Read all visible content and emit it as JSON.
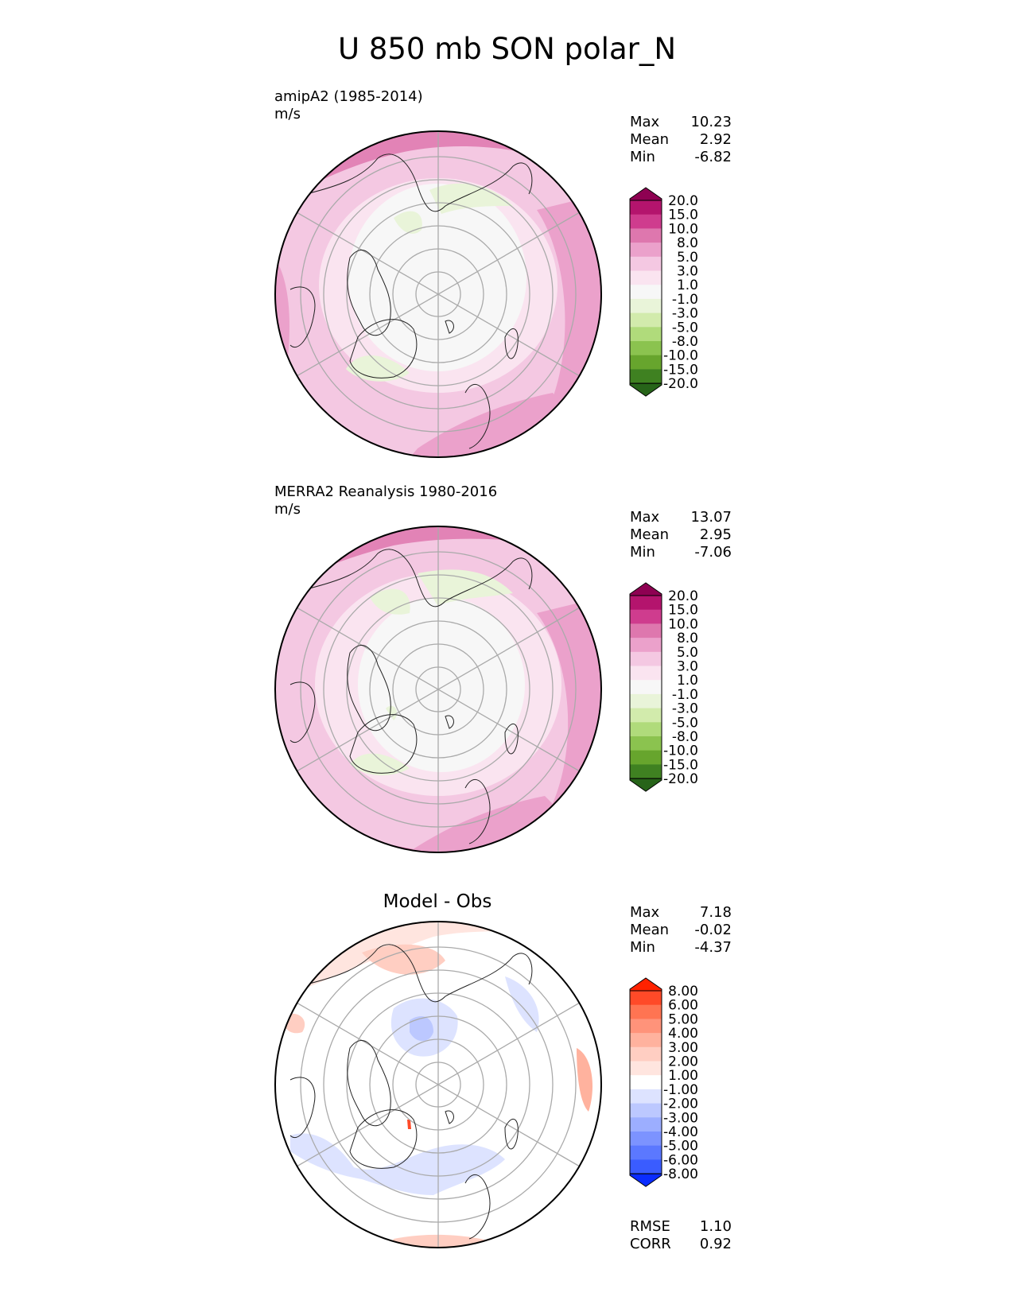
{
  "title": "U 850 mb SON polar_N",
  "panels": [
    {
      "id": "model",
      "header_line1": "amipA2 (1985-2014)",
      "header_line2": "m/s",
      "stats": {
        "max_label": "Max",
        "max": "10.23",
        "mean_label": "Mean",
        "mean": "2.92",
        "min_label": "Min",
        "min": "-6.82"
      },
      "colorbar": {
        "labels": [
          "20.0",
          "15.0",
          "10.0",
          "8.0",
          "5.0",
          "3.0",
          "1.0",
          "-1.0",
          "-3.0",
          "-5.0",
          "-8.0",
          "-10.0",
          "-15.0",
          "-20.0"
        ],
        "colors": [
          "#8e0152",
          "#b4146d",
          "#cf3c8e",
          "#de77ae",
          "#eba1cb",
          "#f4c8e2",
          "#fae4f0",
          "#f7f7f7",
          "#e9f4d9",
          "#d2ebac",
          "#b0db7b",
          "#8bc34f",
          "#67a52d",
          "#3f8121",
          "#276419"
        ]
      }
    },
    {
      "id": "obs",
      "header_line1": "MERRA2 Reanalysis 1980-2016",
      "header_line2": "m/s",
      "stats": {
        "max_label": "Max",
        "max": "13.07",
        "mean_label": "Mean",
        "mean": "2.95",
        "min_label": "Min",
        "min": "-7.06"
      },
      "colorbar": {
        "labels": [
          "20.0",
          "15.0",
          "10.0",
          "8.0",
          "5.0",
          "3.0",
          "1.0",
          "-1.0",
          "-3.0",
          "-5.0",
          "-8.0",
          "-10.0",
          "-15.0",
          "-20.0"
        ],
        "colors": [
          "#8e0152",
          "#b4146d",
          "#cf3c8e",
          "#de77ae",
          "#eba1cb",
          "#f4c8e2",
          "#fae4f0",
          "#f7f7f7",
          "#e9f4d9",
          "#d2ebac",
          "#b0db7b",
          "#8bc34f",
          "#67a52d",
          "#3f8121",
          "#276419"
        ]
      }
    },
    {
      "id": "diff",
      "title": "Model - Obs",
      "stats": {
        "max_label": "Max",
        "max": "7.18",
        "mean_label": "Mean",
        "mean": "-0.02",
        "min_label": "Min",
        "min": "-4.37"
      },
      "colorbar": {
        "labels": [
          "8.00",
          "6.00",
          "5.00",
          "4.00",
          "3.00",
          "2.00",
          "1.00",
          "-1.00",
          "-2.00",
          "-3.00",
          "-4.00",
          "-5.00",
          "-6.00",
          "-8.00"
        ],
        "colors": [
          "#ff2200",
          "#ff4a28",
          "#ff7452",
          "#ff937a",
          "#ffb29e",
          "#ffcec2",
          "#ffe5df",
          "#ffffff",
          "#dde3ff",
          "#bcc8ff",
          "#9caeff",
          "#7c93ff",
          "#5b78ff",
          "#3a5cff",
          "#0a2cff"
        ]
      },
      "metrics": {
        "rmse_label": "RMSE",
        "rmse": "1.10",
        "corr_label": "CORR",
        "corr": "0.92"
      }
    }
  ]
}
